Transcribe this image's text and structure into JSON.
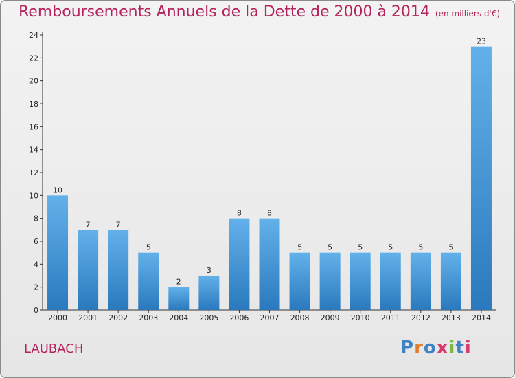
{
  "header": {
    "title": "Remboursements Annuels de la Dette de 2000 à 2014",
    "unit": "(en milliers d'€)"
  },
  "footer": {
    "commune": "LAUBACH",
    "brand": "Proxiti"
  },
  "colors": {
    "title": "#b4245a",
    "bar_top": "#63b1ea",
    "bar_bottom": "#2a79bd",
    "brand_letters": [
      "#3f83c4",
      "#e07b2a",
      "#3f83c4",
      "#d93a6b",
      "#7bb843",
      "#3f83c4",
      "#d93a6b"
    ]
  },
  "chart_data": {
    "type": "bar",
    "title": "Remboursements Annuels de la Dette de 2000 à 2014",
    "subtitle": "(en milliers d'€)",
    "xlabel": "",
    "ylabel": "",
    "categories": [
      "2000",
      "2001",
      "2002",
      "2003",
      "2004",
      "2005",
      "2006",
      "2007",
      "2008",
      "2009",
      "2010",
      "2011",
      "2012",
      "2013",
      "2014"
    ],
    "values": [
      10,
      7,
      7,
      5,
      2,
      3,
      8,
      8,
      5,
      5,
      5,
      5,
      5,
      5,
      23
    ],
    "ylim": [
      0,
      24
    ],
    "yticks": [
      0,
      2,
      4,
      6,
      8,
      10,
      12,
      14,
      16,
      18,
      20,
      22,
      24
    ],
    "grid": false,
    "data_labels": true
  }
}
